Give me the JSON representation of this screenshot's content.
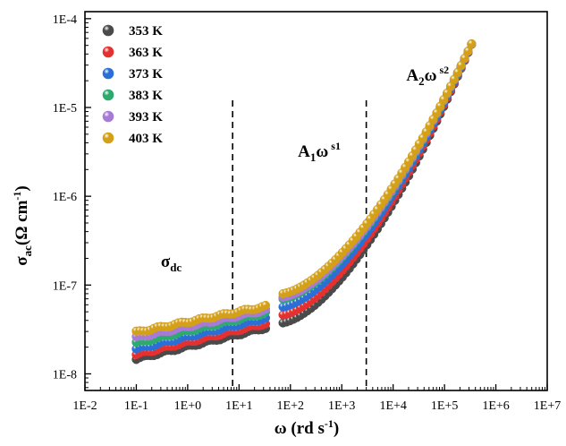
{
  "chart_data": {
    "type": "scatter",
    "title": "",
    "xlabel": {
      "main": "ω (rd s",
      "sup": "-1",
      "close": ")"
    },
    "ylabel": {
      "main": "σ",
      "sub": "ac",
      "rest": "(Ω cm",
      "sup": "-1",
      "close": ")"
    },
    "x_scale": "log",
    "y_scale": "log",
    "xlim": [
      0.01,
      10000000
    ],
    "ylim": [
      6.5e-09,
      0.00012
    ],
    "x_ticks": [
      {
        "value": 0.01,
        "label": "1E-2"
      },
      {
        "value": 0.1,
        "label": "1E-1"
      },
      {
        "value": 1,
        "label": "1E+0"
      },
      {
        "value": 10,
        "label": "1E+1"
      },
      {
        "value": 100,
        "label": "1E+2"
      },
      {
        "value": 1000,
        "label": "1E+3"
      },
      {
        "value": 10000,
        "label": "1E+4"
      },
      {
        "value": 100000,
        "label": "1E+5"
      },
      {
        "value": 1000000,
        "label": "1E+6"
      },
      {
        "value": 10000000,
        "label": "1E+7"
      }
    ],
    "y_ticks": [
      {
        "value": 1e-08,
        "label": "1E-8"
      },
      {
        "value": 1e-07,
        "label": "1E-7"
      },
      {
        "value": 1e-06,
        "label": "1E-6"
      },
      {
        "value": 1e-05,
        "label": "1E-5"
      },
      {
        "value": 0.0001,
        "label": "1E-4"
      }
    ],
    "legend_position": "top-left",
    "series": [
      {
        "name": "353 K",
        "color": "#4a4a4a",
        "low_log": -7.83,
        "mid_log": -7.47,
        "jump_log": -7.43
      },
      {
        "name": "363 K",
        "color": "#e53030",
        "low_log": -7.78,
        "mid_log": -7.42,
        "jump_log": -7.34
      },
      {
        "name": "373 K",
        "color": "#2a6fd6",
        "low_log": -7.72,
        "mid_log": -7.36,
        "jump_log": -7.25
      },
      {
        "name": "383 K",
        "color": "#2eaa6e",
        "low_log": -7.65,
        "mid_log": -7.3,
        "jump_log": -7.16
      },
      {
        "name": "393 K",
        "color": "#a87ad8",
        "low_log": -7.59,
        "mid_log": -7.27,
        "jump_log": -7.14
      },
      {
        "name": "403 K",
        "color": "#d4a017",
        "low_log": -7.53,
        "mid_log": -7.23,
        "jump_log": -7.1
      }
    ],
    "vertical_lines": [
      7.5,
      3000
    ],
    "annotations": [
      {
        "id": "sdc",
        "main": "σ",
        "sub": "dc",
        "x": 0.3,
        "y": 1.6e-07
      },
      {
        "id": "a1",
        "main": "A",
        "sub": "1",
        "rest": "ω",
        "sup": " s1",
        "x": 140,
        "y": 2.8e-06
      },
      {
        "id": "a2",
        "main": "A",
        "sub": "2",
        "rest": "ω",
        "sup": " s2",
        "x": 18000,
        "y": 2e-05
      }
    ]
  }
}
